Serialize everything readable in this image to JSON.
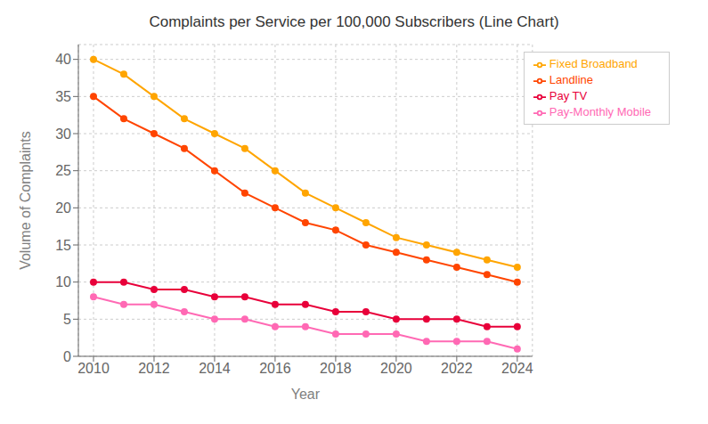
{
  "chart_data": {
    "type": "line",
    "title": "Complaints per Service per 100,000 Subscribers (Line Chart)",
    "xlabel": "Year",
    "ylabel": "Volume of Complaints",
    "x": [
      2010,
      2011,
      2012,
      2013,
      2014,
      2015,
      2016,
      2017,
      2018,
      2019,
      2020,
      2021,
      2022,
      2023,
      2024
    ],
    "xlim": [
      2009.5,
      2024.5
    ],
    "xticks": [
      2010,
      2012,
      2014,
      2016,
      2018,
      2020,
      2022,
      2024
    ],
    "ylim": [
      0,
      42
    ],
    "yticks": [
      0,
      5,
      10,
      15,
      20,
      25,
      30,
      35,
      40
    ],
    "grid": true,
    "legend": "upper right",
    "series": [
      {
        "name": "Fixed Broadband",
        "color": "#FFA500",
        "marker": "circle",
        "values": [
          40,
          38,
          35,
          32,
          30,
          28,
          25,
          22,
          20,
          18,
          16,
          15,
          14,
          13,
          12
        ]
      },
      {
        "name": "Landline",
        "color": "#FF4500",
        "marker": "circle",
        "values": [
          35,
          32,
          30,
          28,
          25,
          22,
          20,
          18,
          17,
          15,
          14,
          13,
          12,
          11,
          10
        ]
      },
      {
        "name": "Pay TV",
        "color": "#E8003A",
        "marker": "circle",
        "values": [
          10,
          10,
          9,
          9,
          8,
          8,
          7,
          7,
          6,
          6,
          5,
          5,
          5,
          4,
          4
        ]
      },
      {
        "name": "Pay-Monthly Mobile",
        "color": "#FF69B4",
        "marker": "circle",
        "values": [
          8,
          7,
          7,
          6,
          5,
          5,
          4,
          4,
          3,
          3,
          3,
          2,
          2,
          2,
          1
        ]
      }
    ]
  }
}
